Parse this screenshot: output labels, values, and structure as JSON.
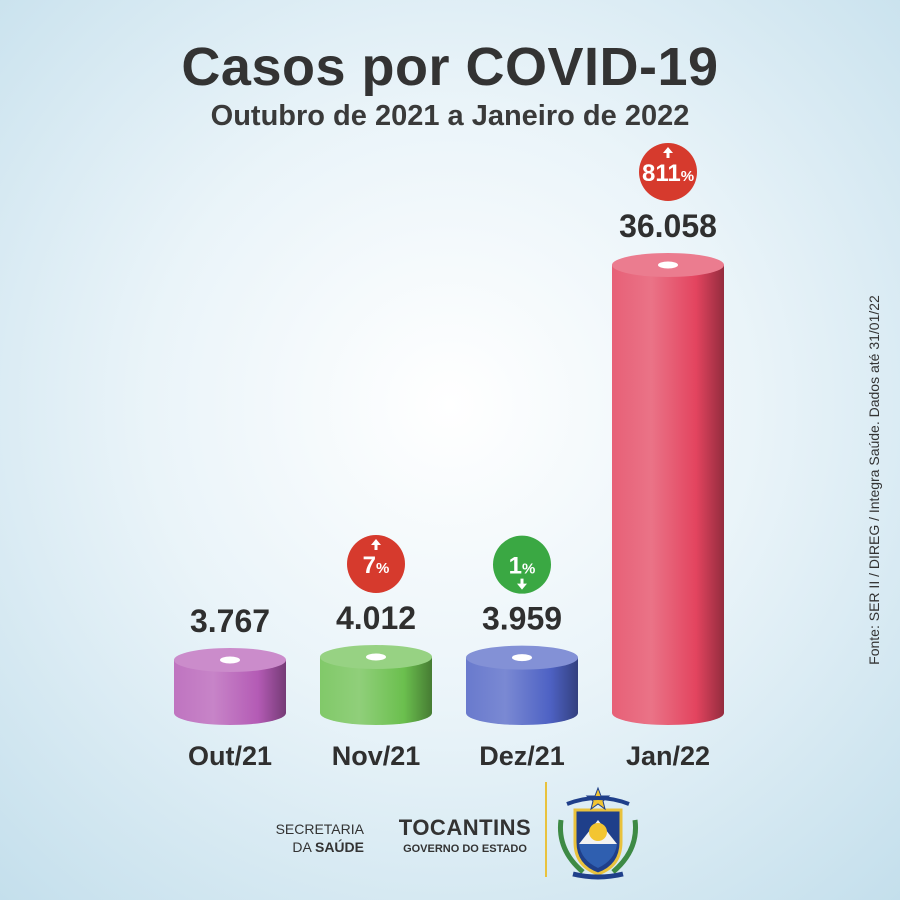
{
  "header": {
    "title": "Casos por COVID-19",
    "subtitle": "Outubro de 2021 a Janeiro de 2022"
  },
  "chart_data": {
    "type": "bar",
    "title": "Casos por COVID-19",
    "subtitle": "Outubro de 2021 a Janeiro de 2022",
    "categories": [
      "Out/21",
      "Nov/21",
      "Dez/21",
      "Jan/22"
    ],
    "values": [
      3767,
      4012,
      3959,
      36058
    ],
    "value_labels": [
      "3.767",
      "4.012",
      "3.959",
      "36.058"
    ],
    "changes": [
      null,
      {
        "number": "7",
        "unit": "%",
        "direction": "up",
        "color": "#d63a2d"
      },
      {
        "number": "1",
        "unit": "%",
        "direction": "down",
        "color": "#3aa843"
      },
      {
        "number": "811",
        "unit": "%",
        "direction": "up",
        "color": "#d63a2d"
      }
    ],
    "colors": [
      "#b45bb5",
      "#6bbf4e",
      "#4e62c4",
      "#e3445f"
    ]
  },
  "source_note": "Fonte: SER II / DIREG / Integra Saúde. Dados até 31/01/22",
  "footer": {
    "secretaria_line1": "SECRETARIA",
    "secretaria_line2_prefix": "DA ",
    "secretaria_line2_bold": "SAÚDE",
    "state_name": "TOCANTINS",
    "state_sub": "GOVERNO DO ESTADO",
    "divider_color": "#e9c23d"
  }
}
